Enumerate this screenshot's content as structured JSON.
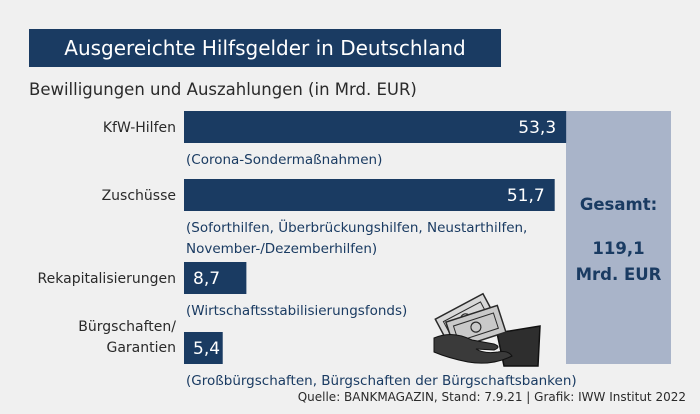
{
  "title": "Ausgereichte Hilfsgelder in Deutschland",
  "subtitle": "Bewilligungen und Auszahlungen (in Mrd. EUR)",
  "source": "Quelle: BANKMAGAZIN, Stand: 7.9.21 | Grafik: IWW Institut 2022",
  "total": {
    "label": "Gesamt:",
    "value": "119,1",
    "unit": "Mrd. EUR"
  },
  "colors": {
    "bar": "#1a3b62",
    "total_box": "#a9b4c9",
    "background": "#f0f0f0",
    "text": "#2a2a2a"
  },
  "icon": "money-wallet-icon",
  "chart_data": {
    "type": "bar",
    "orientation": "horizontal",
    "categories": [
      [
        "KfW-Hilfen"
      ],
      [
        "Zuschüsse"
      ],
      [
        "Rekapitalisierungen"
      ],
      [
        "Bürgschaften/",
        "Garantien"
      ]
    ],
    "values": [
      53.3,
      51.7,
      8.7,
      5.4
    ],
    "value_labels": [
      "53,3",
      "51,7",
      "8,7",
      "5,4"
    ],
    "notes": [
      [
        "(Corona-Sondermaßnahmen)"
      ],
      [
        "(Soforthilfen, Überbrückungshilfen, Neustarthilfen,",
        "November-/Dezemberhilfen)"
      ],
      [
        "(Wirtschaftsstabilisierungsfonds)"
      ],
      [
        "(Großbürgschaften, Bürgschaften der Bürgschaftsbanken)"
      ]
    ]
  }
}
